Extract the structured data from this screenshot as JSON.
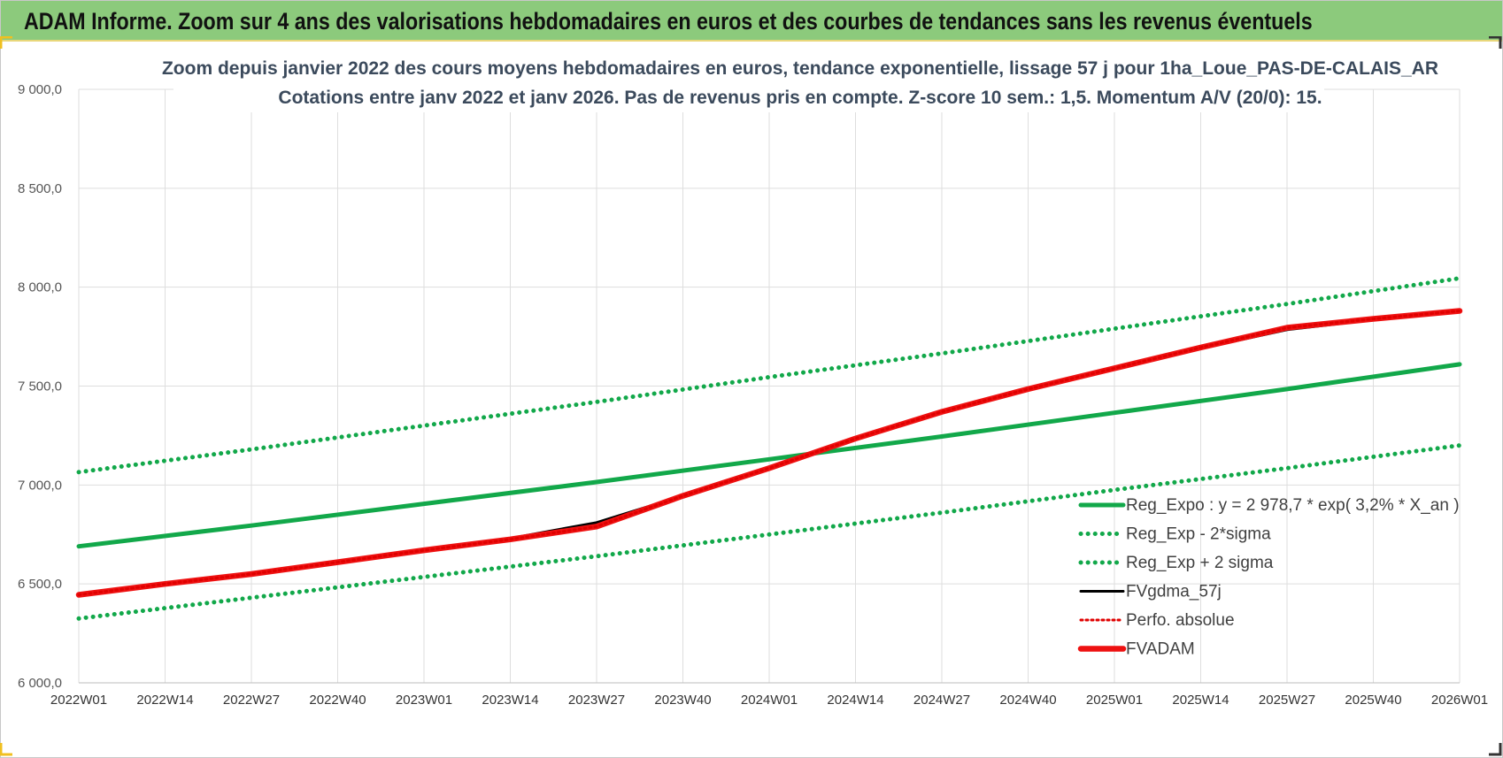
{
  "header": {
    "title": "ADAM Informe. Zoom sur 4 ans des valorisations hebdomadaires en euros et des courbes de tendances sans les revenus éventuels"
  },
  "colors": {
    "banner": "#8cca7c",
    "trend": "#12a84a",
    "band": "#12a84a",
    "smooth": "#000000",
    "perf": "#e00000",
    "fvadam": "#ee1111"
  },
  "chart_data": {
    "type": "line",
    "title": [
      "Zoom depuis janvier 2022 des cours moyens hebdomadaires en euros, tendance exponentielle, lissage 57 j pour 1ha_Loue_PAS-DE-CALAIS_AR",
      "Cotations entre janv 2022 et janv 2026. Pas de revenus pris en compte. Z-score 10 sem.: 1,5. Momentum A/V (20/0): 15."
    ],
    "x_tick_labels": [
      "2022W01",
      "2022W14",
      "2022W27",
      "2022W40",
      "2023W01",
      "2023W14",
      "2023W27",
      "2023W40",
      "2024W01",
      "2024W14",
      "2024W27",
      "2024W40",
      "2025W01",
      "2025W14",
      "2025W27",
      "2025W40",
      "2026W01"
    ],
    "y_tick_labels": [
      "6 000,0",
      "6 500,0",
      "7 000,0",
      "7 500,0",
      "8 000,0",
      "8 500,0",
      "9 000,0"
    ],
    "ylim": [
      6000,
      9000
    ],
    "xlim": [
      0,
      208
    ],
    "grid": true,
    "legend_position": "bottom-right",
    "series": [
      {
        "name": "Reg_Expo : y = 2 978,7 * exp( 3,2% *  X_an )",
        "style": "solid-thick",
        "color": "#12a84a",
        "x": [
          0,
          26,
          52,
          78,
          104,
          130,
          156,
          182,
          208
        ],
        "y": [
          6690,
          6795,
          6905,
          7015,
          7130,
          7245,
          7365,
          7485,
          7610
        ]
      },
      {
        "name": "Reg_Exp - 2*sigma",
        "style": "dotted",
        "color": "#12a84a",
        "x": [
          0,
          26,
          52,
          78,
          104,
          130,
          156,
          182,
          208
        ],
        "y": [
          6325,
          6430,
          6535,
          6640,
          6750,
          6860,
          6975,
          7085,
          7200
        ]
      },
      {
        "name": "Reg_Exp + 2 sigma",
        "style": "dotted",
        "color": "#12a84a",
        "x": [
          0,
          26,
          52,
          78,
          104,
          130,
          156,
          182,
          208
        ],
        "y": [
          7065,
          7180,
          7300,
          7420,
          7545,
          7665,
          7790,
          7915,
          8045
        ]
      },
      {
        "name": "FVgdma_57j",
        "style": "solid",
        "color": "#000000",
        "x": [
          0,
          13,
          26,
          39,
          52,
          65,
          78,
          91,
          104,
          117,
          130,
          143,
          156,
          169,
          182,
          195,
          208
        ],
        "y": [
          6445,
          6500,
          6550,
          6610,
          6670,
          6730,
          6810,
          6945,
          7085,
          7235,
          7375,
          7485,
          7590,
          7690,
          7785,
          7835,
          7875
        ]
      },
      {
        "name": "Perfo. absolue",
        "style": "dotted",
        "color": "#e00000",
        "x": [
          0,
          13,
          26,
          39,
          52,
          65,
          78,
          91,
          104,
          117,
          130,
          143,
          156,
          169,
          182,
          195,
          208
        ],
        "y": [
          6445,
          6500,
          6550,
          6610,
          6670,
          6725,
          6790,
          6945,
          7085,
          7235,
          7370,
          7485,
          7590,
          7695,
          7795,
          7840,
          7880
        ]
      },
      {
        "name": "FVADAM",
        "style": "solid-thickest",
        "color": "#ee1111",
        "x": [
          0,
          13,
          26,
          39,
          52,
          65,
          78,
          91,
          104,
          117,
          130,
          143,
          156,
          169,
          182,
          195,
          208
        ],
        "y": [
          6445,
          6500,
          6550,
          6610,
          6670,
          6725,
          6790,
          6945,
          7085,
          7235,
          7370,
          7485,
          7590,
          7695,
          7795,
          7840,
          7880
        ]
      }
    ]
  }
}
